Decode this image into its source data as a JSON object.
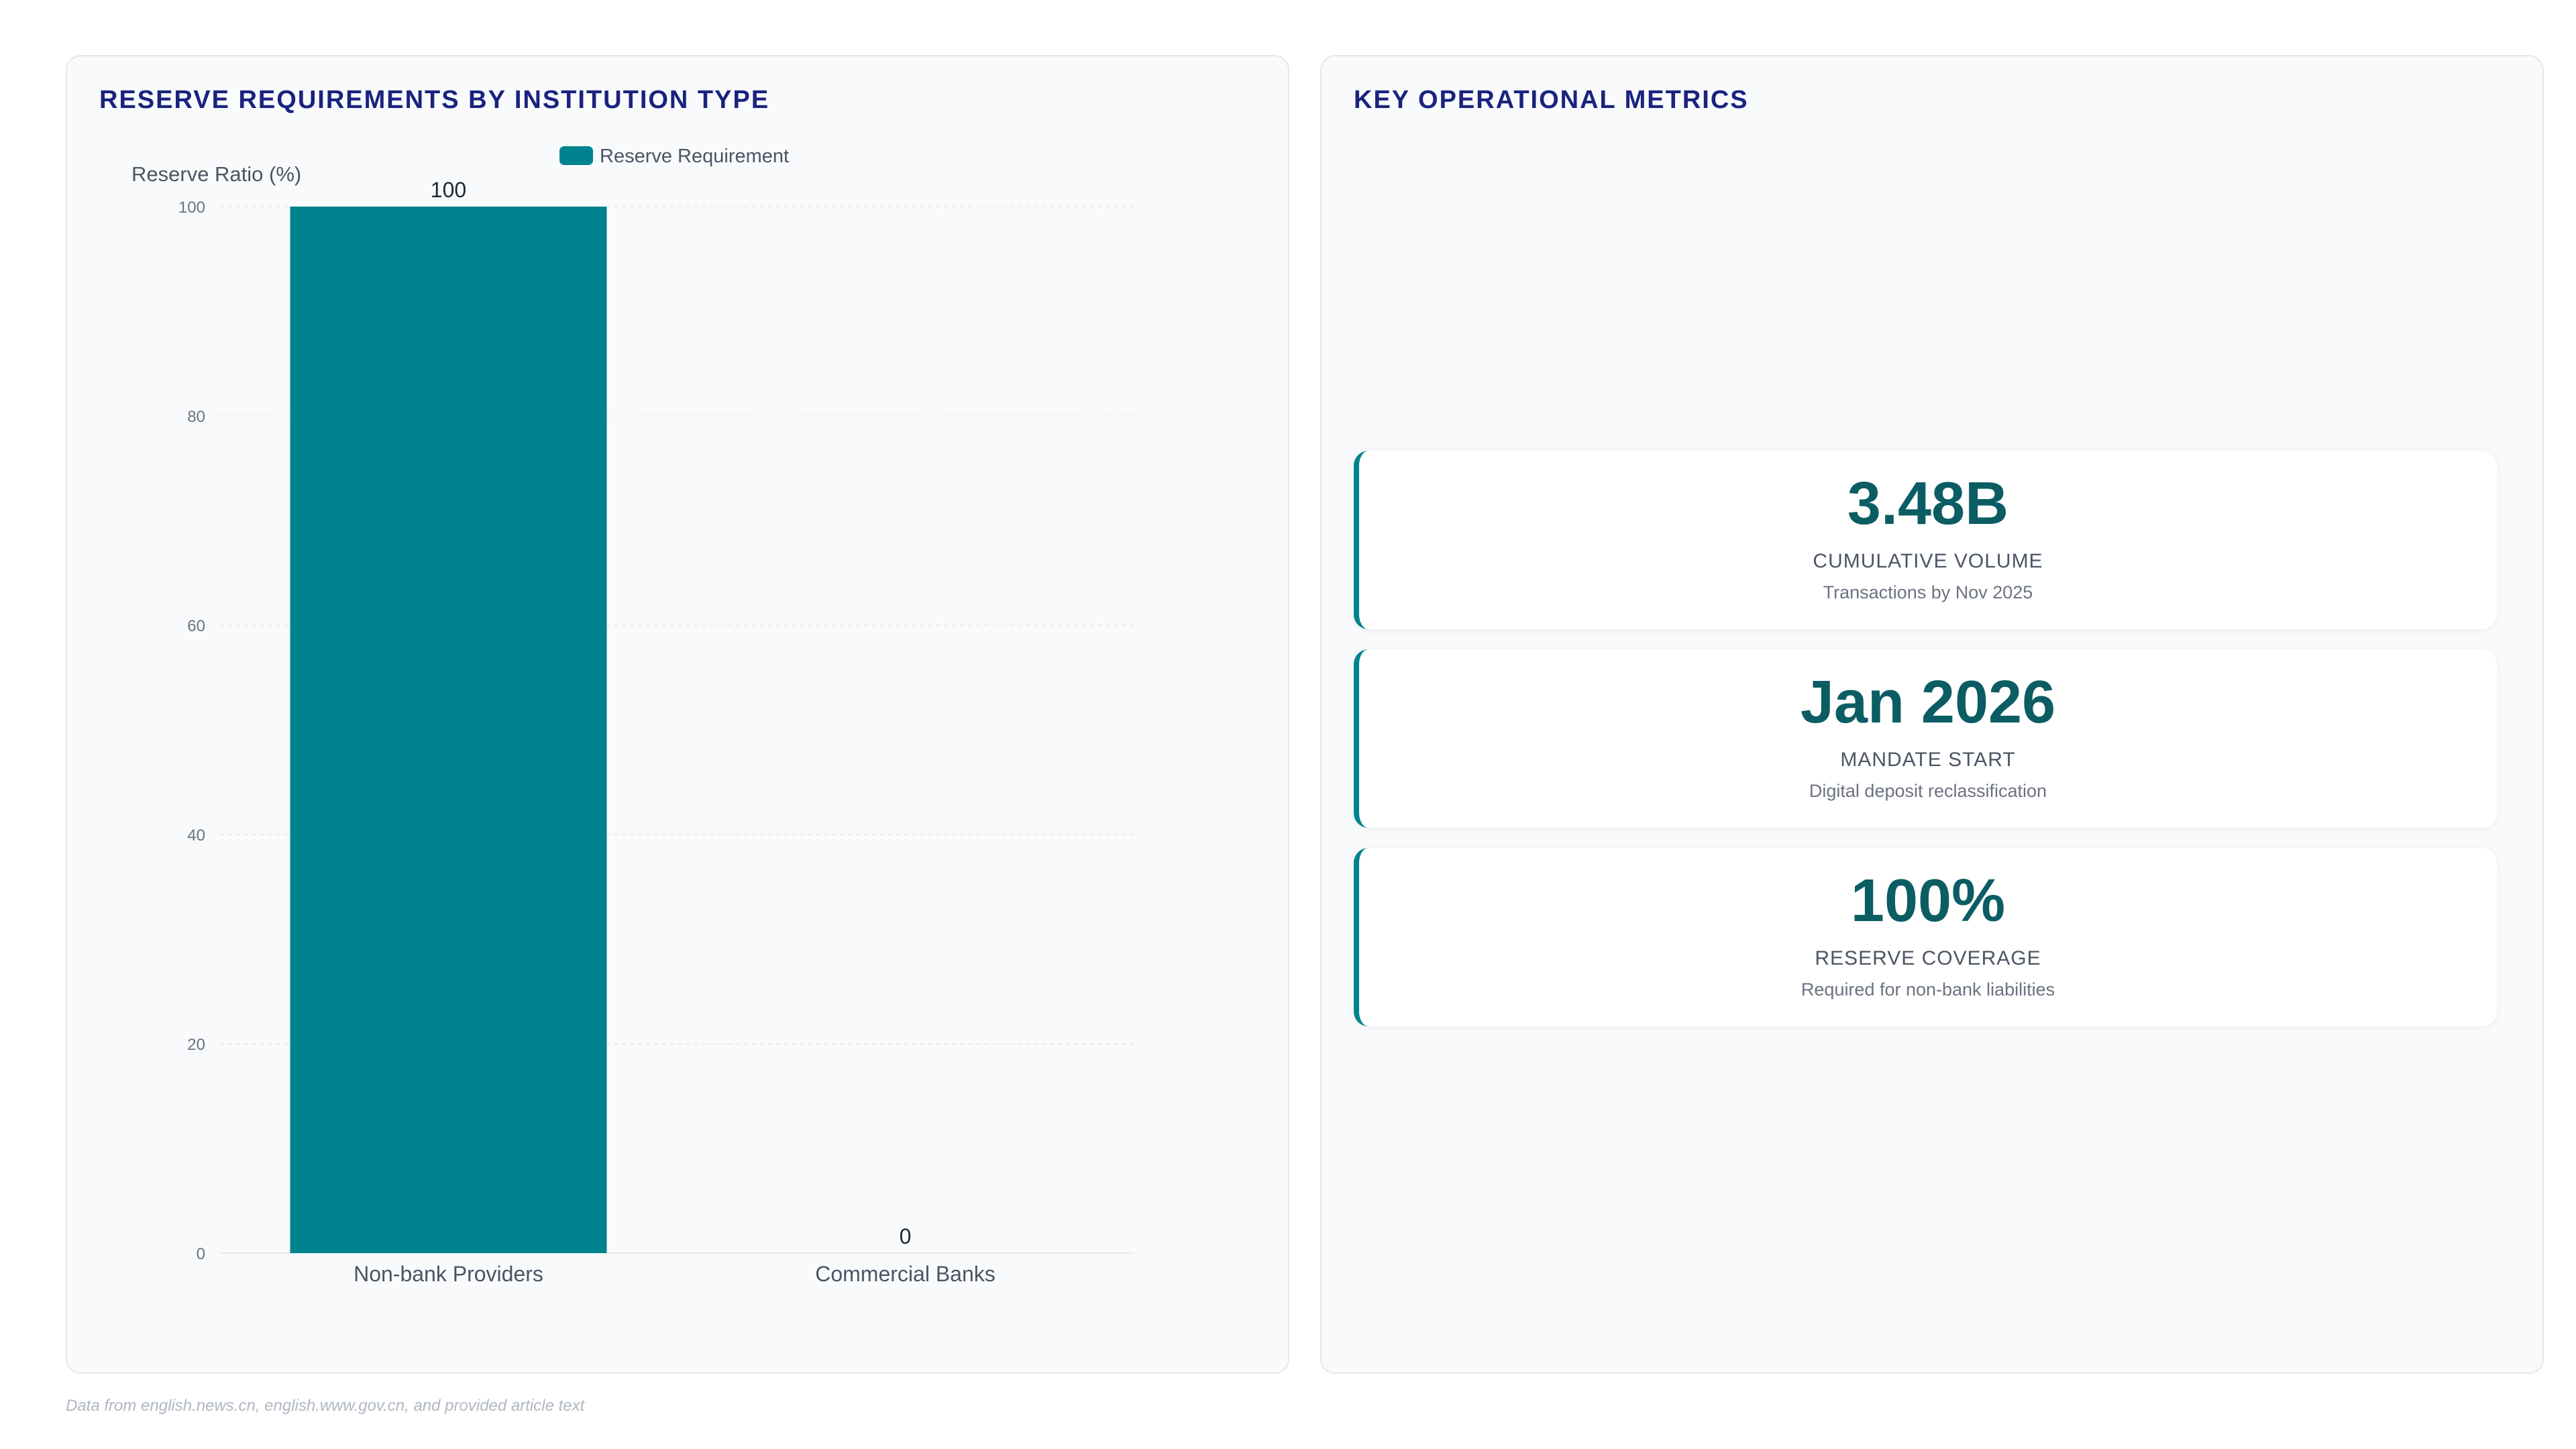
{
  "left_panel": {
    "title": "RESERVE REQUIREMENTS BY INSTITUTION TYPE"
  },
  "right_panel": {
    "title": "KEY OPERATIONAL METRICS",
    "metrics": [
      {
        "value": "3.48B",
        "label": "CUMULATIVE VOLUME",
        "sub": "Transactions by Nov 2025"
      },
      {
        "value": "Jan 2026",
        "label": "MANDATE START",
        "sub": "Digital deposit reclassification"
      },
      {
        "value": "100%",
        "label": "RESERVE COVERAGE",
        "sub": "Required for non-bank liabilities"
      }
    ]
  },
  "footnote": "Data from english.news.cn, english.www.gov.cn, and provided article text",
  "colors": {
    "bar": "#00838f",
    "title": "#1a237e",
    "metric_value": "#0b5d63"
  },
  "chart_data": {
    "type": "bar",
    "categories": [
      "Non-bank Providers",
      "Commercial Banks"
    ],
    "series": [
      {
        "name": "Reserve Requirement",
        "values": [
          100,
          0
        ]
      }
    ],
    "ylabel": "Reserve Ratio (%)",
    "xlabel": "",
    "ylim": [
      0,
      100
    ],
    "yticks": [
      0,
      20,
      40,
      60,
      80,
      100
    ],
    "data_labels": [
      "100",
      "0"
    ],
    "legend_position": "top",
    "grid": true
  }
}
